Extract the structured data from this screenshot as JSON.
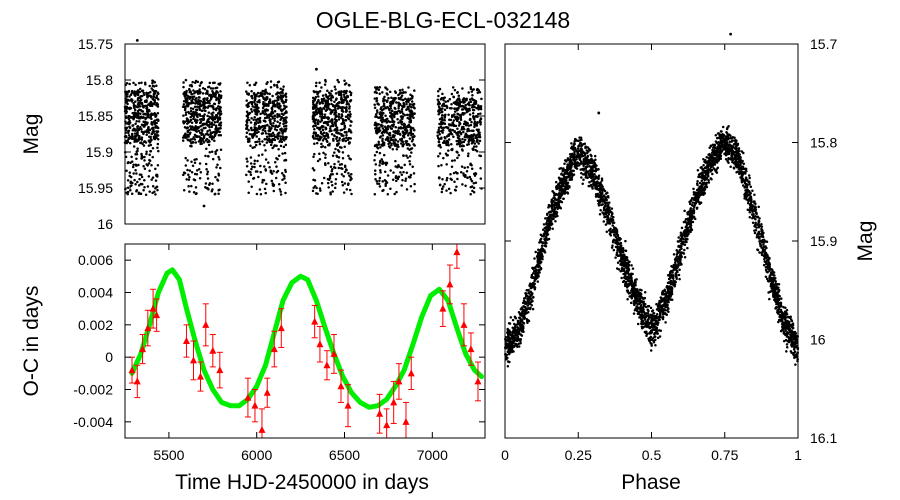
{
  "title": "OGLE-BLG-ECL-032148",
  "chart_data": [
    {
      "name": "light-curve-time",
      "type": "scatter",
      "title": "",
      "xlabel": "",
      "ylabel": "Mag",
      "xlim": [
        5250,
        7300
      ],
      "ylim": [
        16.0,
        15.75
      ],
      "y_inverted": true,
      "yticks": [
        "15.75",
        "15.8",
        "15.85",
        "15.9",
        "15.95",
        "16"
      ],
      "marker_color": "#000000",
      "seasons": [
        {
          "x_start": 5250,
          "x_end": 5440,
          "mag_min": 15.8,
          "mag_max": 15.96
        },
        {
          "x_start": 5580,
          "x_end": 5800,
          "mag_min": 15.8,
          "mag_max": 15.96
        },
        {
          "x_start": 5940,
          "x_end": 6170,
          "mag_min": 15.8,
          "mag_max": 15.96
        },
        {
          "x_start": 6320,
          "x_end": 6540,
          "mag_min": 15.8,
          "mag_max": 15.96
        },
        {
          "x_start": 6670,
          "x_end": 6900,
          "mag_min": 15.81,
          "mag_max": 15.96
        },
        {
          "x_start": 7030,
          "x_end": 7280,
          "mag_min": 15.81,
          "mag_max": 15.96
        }
      ],
      "outliers": [
        {
          "x": 5320,
          "y": 15.745
        },
        {
          "x": 6340,
          "y": 15.785
        },
        {
          "x": 5700,
          "y": 15.975
        }
      ]
    },
    {
      "name": "o-c-diagram",
      "type": "scatter",
      "title": "",
      "xlabel": "Time HJD-2450000 in days",
      "ylabel": "O-C in days",
      "xlim": [
        5250,
        7300
      ],
      "ylim": [
        -0.005,
        0.007
      ],
      "xticks": [
        "5500",
        "6000",
        "6500",
        "7000"
      ],
      "yticks": [
        "-0.004",
        "-0.002",
        "0",
        "0.002",
        "0.004",
        "0.006"
      ],
      "series": [
        {
          "name": "O-C timings",
          "color": "#ff0000",
          "marker": "triangle",
          "points": [
            {
              "x": 5290,
              "y": -0.0008,
              "err": 0.0008
            },
            {
              "x": 5320,
              "y": -0.0015,
              "err": 0.001
            },
            {
              "x": 5350,
              "y": 0.0005,
              "err": 0.0009
            },
            {
              "x": 5380,
              "y": 0.0018,
              "err": 0.0011
            },
            {
              "x": 5410,
              "y": 0.003,
              "err": 0.0012
            },
            {
              "x": 5430,
              "y": 0.0026,
              "err": 0.001
            },
            {
              "x": 5600,
              "y": 0.001,
              "err": 0.001
            },
            {
              "x": 5640,
              "y": -0.0002,
              "err": 0.0012
            },
            {
              "x": 5680,
              "y": -0.0012,
              "err": 0.0009
            },
            {
              "x": 5710,
              "y": 0.002,
              "err": 0.0013
            },
            {
              "x": 5750,
              "y": 0.0004,
              "err": 0.001
            },
            {
              "x": 5790,
              "y": -0.0008,
              "err": 0.0011
            },
            {
              "x": 5950,
              "y": -0.0025,
              "err": 0.0012
            },
            {
              "x": 5990,
              "y": -0.003,
              "err": 0.001
            },
            {
              "x": 6030,
              "y": -0.0045,
              "err": 0.0013
            },
            {
              "x": 6060,
              "y": -0.0022,
              "err": 0.0009
            },
            {
              "x": 6100,
              "y": 0.0005,
              "err": 0.0011
            },
            {
              "x": 6140,
              "y": 0.0018,
              "err": 0.0012
            },
            {
              "x": 6330,
              "y": 0.0022,
              "err": 0.001
            },
            {
              "x": 6360,
              "y": 0.0008,
              "err": 0.0011
            },
            {
              "x": 6400,
              "y": -0.0005,
              "err": 0.0009
            },
            {
              "x": 6440,
              "y": 0.0002,
              "err": 0.0012
            },
            {
              "x": 6480,
              "y": -0.0018,
              "err": 0.001
            },
            {
              "x": 6520,
              "y": -0.003,
              "err": 0.0013
            },
            {
              "x": 6700,
              "y": -0.0035,
              "err": 0.0012
            },
            {
              "x": 6740,
              "y": -0.0042,
              "err": 0.001
            },
            {
              "x": 6780,
              "y": -0.0028,
              "err": 0.0013
            },
            {
              "x": 6810,
              "y": -0.0015,
              "err": 0.0011
            },
            {
              "x": 6850,
              "y": -0.004,
              "err": 0.0012
            },
            {
              "x": 6880,
              "y": -0.001,
              "err": 0.001
            },
            {
              "x": 7060,
              "y": 0.003,
              "err": 0.0011
            },
            {
              "x": 7100,
              "y": 0.0045,
              "err": 0.0012
            },
            {
              "x": 7140,
              "y": 0.0065,
              "err": 0.001
            },
            {
              "x": 7180,
              "y": 0.002,
              "err": 0.0013
            },
            {
              "x": 7220,
              "y": 0.0005,
              "err": 0.001
            },
            {
              "x": 7260,
              "y": -0.0015,
              "err": 0.0012
            }
          ]
        },
        {
          "name": "Fit",
          "color": "#00ee00",
          "type": "line",
          "x": [
            5290,
            5340,
            5390,
            5440,
            5490,
            5520,
            5560,
            5600,
            5650,
            5700,
            5750,
            5800,
            5850,
            5900,
            5950,
            6000,
            6050,
            6100,
            6150,
            6200,
            6250,
            6290,
            6340,
            6390,
            6440,
            6490,
            6540,
            6590,
            6640,
            6690,
            6740,
            6790,
            6840,
            6890,
            6940,
            6990,
            7040,
            7090,
            7140,
            7190,
            7240,
            7280
          ],
          "y": [
            -0.001,
            0.0002,
            0.002,
            0.004,
            0.0052,
            0.0054,
            0.0048,
            0.003,
            0.001,
            -0.0008,
            -0.002,
            -0.0028,
            -0.003,
            -0.003,
            -0.0026,
            -0.0018,
            -0.0005,
            0.0015,
            0.0035,
            0.0046,
            0.005,
            0.0048,
            0.0035,
            0.0018,
            0.0002,
            -0.0012,
            -0.0022,
            -0.0028,
            -0.0031,
            -0.003,
            -0.0026,
            -0.0018,
            -0.0008,
            0.0008,
            0.0025,
            0.0038,
            0.0042,
            0.0035,
            0.0018,
            0.0002,
            -0.0008,
            -0.0012
          ]
        }
      ]
    },
    {
      "name": "phased-light-curve",
      "type": "scatter",
      "title": "",
      "xlabel": "Phase",
      "ylabel": "Mag",
      "xlim": [
        0,
        1
      ],
      "ylim": [
        16.1,
        15.7
      ],
      "y_inverted": true,
      "xticks": [
        "0",
        "0.25",
        "0.5",
        "0.75",
        "1"
      ],
      "yticks": [
        "15.7",
        "15.8",
        "15.9",
        "16",
        "16.1"
      ],
      "marker_color": "#000000",
      "curve": {
        "phase": [
          0.0,
          0.05,
          0.1,
          0.15,
          0.2,
          0.25,
          0.3,
          0.35,
          0.4,
          0.45,
          0.5,
          0.55,
          0.6,
          0.65,
          0.7,
          0.75,
          0.8,
          0.85,
          0.9,
          0.95,
          1.0
        ],
        "mag": [
          16.01,
          15.99,
          15.94,
          15.88,
          15.84,
          15.81,
          15.83,
          15.87,
          15.92,
          15.96,
          15.99,
          15.96,
          15.91,
          15.86,
          15.82,
          15.8,
          15.82,
          15.87,
          15.93,
          15.98,
          16.01
        ],
        "scatter": 0.018
      },
      "outliers": [
        {
          "x": 0.32,
          "y": 15.77
        },
        {
          "x": 0.77,
          "y": 15.69
        }
      ]
    }
  ]
}
